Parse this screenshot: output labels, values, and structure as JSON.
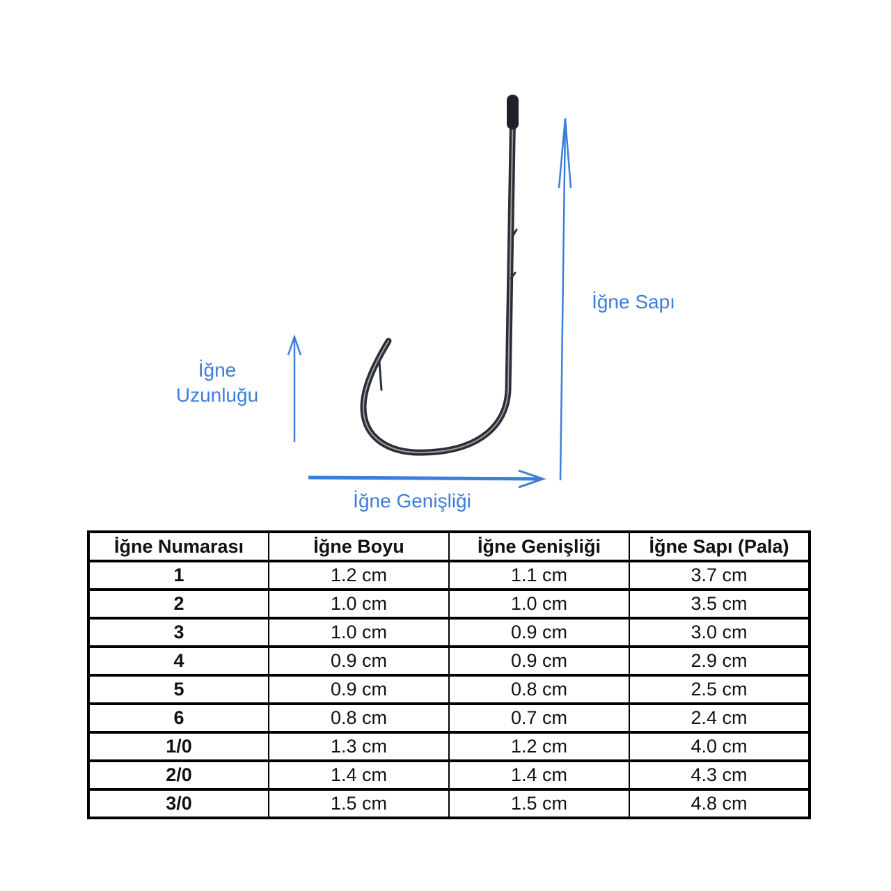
{
  "colors": {
    "accent": "#3d7ddb",
    "hook": "#2b2f35",
    "table_border": "#000000"
  },
  "labels": {
    "length_line1": "İğne",
    "length_line2": "Uzunluğu",
    "shank": "İğne Sapı",
    "width": "İğne Genişliği"
  },
  "table": {
    "headers": [
      "İğne Numarası",
      "İğne Boyu",
      "İğne Genişliği",
      "İğne Sapı (Pala)"
    ],
    "rows": [
      [
        "1",
        "1.2 cm",
        "1.1 cm",
        "3.7 cm"
      ],
      [
        "2",
        "1.0 cm",
        "1.0 cm",
        "3.5 cm"
      ],
      [
        "3",
        "1.0 cm",
        "0.9 cm",
        "3.0 cm"
      ],
      [
        "4",
        "0.9 cm",
        "0.9 cm",
        "2.9 cm"
      ],
      [
        "5",
        "0.9 cm",
        "0.8 cm",
        "2.5 cm"
      ],
      [
        "6",
        "0.8 cm",
        "0.7 cm",
        "2.4 cm"
      ],
      [
        "1/0",
        "1.3 cm",
        "1.2 cm",
        "4.0 cm"
      ],
      [
        "2/0",
        "1.4 cm",
        "1.4 cm",
        "4.3 cm"
      ],
      [
        "3/0",
        "1.5 cm",
        "1.5 cm",
        "4.8 cm"
      ]
    ]
  }
}
